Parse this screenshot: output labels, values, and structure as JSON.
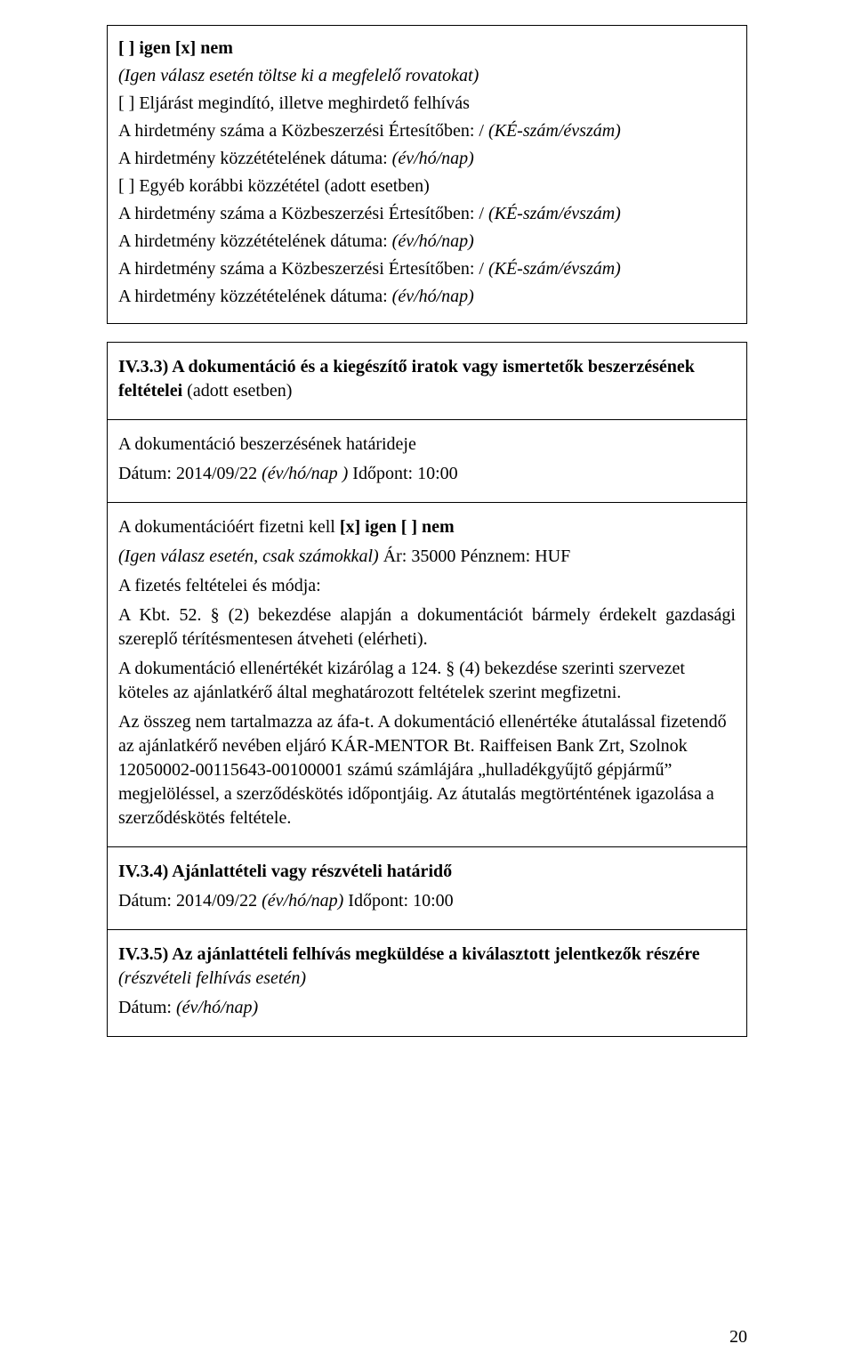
{
  "box1": {
    "line1_prefix": "[ ] igen [x] nem",
    "line2": "(Igen válasz esetén töltse ki a megfelelő rovatokat)",
    "line3": "[ ] Eljárást megindító, illetve meghirdető felhívás",
    "line4_a": "A hirdetmény száma a Közbeszerzési Értesítőben: / ",
    "line4_b": "(KÉ-szám/évszám)",
    "line5_a": "A hirdetmény közzétételének dátuma: ",
    "line5_b": "(év/hó/nap)",
    "line6": "[ ] Egyéb korábbi közzététel (adott esetben)",
    "line7_a": "A hirdetmény száma a Közbeszerzési Értesítőben: / ",
    "line7_b": "(KÉ-szám/évszám)",
    "line8_a": "A hirdetmény közzétételének dátuma: ",
    "line8_b": "(év/hó/nap)",
    "line9_a": "A hirdetmény száma a Közbeszerzési Értesítőben: / ",
    "line9_b": "(KÉ-szám/évszám)",
    "line10_a": "A hirdetmény közzétételének dátuma: ",
    "line10_b": "(év/hó/nap)"
  },
  "table": {
    "cell1": {
      "title": "IV.3.3) A dokumentáció és a kiegészítő iratok vagy ismertetők beszerzésének feltételei ",
      "title_suffix": "(adott esetben)"
    },
    "cell2": {
      "p1": "A dokumentáció beszerzésének határideje",
      "p2_a": "Dátum:   2014/09/22   ",
      "p2_b": "(év/hó/nap ) ",
      "p2_c": "Időpont: 10:00"
    },
    "cell3": {
      "p1_a": "A dokumentációért fizetni kell ",
      "p1_b": "[x] igen [ ] nem",
      "p2_a": "(Igen válasz esetén, csak számokkal) ",
      "p2_b": "Ár: 35000 Pénznem: HUF",
      "p3": "A fizetés feltételei és módja:",
      "p4": "A Kbt. 52. § (2) bekezdése alapján a dokumentációt bármely érdekelt gazdasági szereplő térítésmentesen átveheti (elérheti).",
      "p5": "A dokumentáció ellenértékét kizárólag a 124. § (4) bekezdése szerinti szervezet köteles az ajánlatkérő által meghatározott feltételek szerint megfizetni.",
      "p6": "Az összeg nem tartalmazza az áfa-t. A dokumentáció ellenértéke átutalással fizetendő az ajánlatkérő nevében eljáró KÁR-MENTOR Bt. Raiffeisen Bank Zrt, Szolnok 12050002-00115643-00100001 számú számlájára „hulladékgyűjtő gépjármű” megjelöléssel, a szerződéskötés időpontjáig. Az átutalás megtörténtének igazolása a szerződéskötés feltétele."
    },
    "cell4": {
      "title": "IV.3.4) Ajánlattételi vagy részvételi határidő",
      "p1_a": "Dátum:  2014/09/22 ",
      "p1_b": "(év/hó/nap) ",
      "p1_c": "Időpont: 10:00"
    },
    "cell5": {
      "title": "IV.3.5) Az ajánlattételi felhívás megküldése a kiválasztott jelentkezők részére ",
      "title_suffix": "(részvételi felhívás esetén)",
      "p1_a": "Dátum: ",
      "p1_b": "(év/hó/nap)"
    }
  },
  "page_number": "20"
}
